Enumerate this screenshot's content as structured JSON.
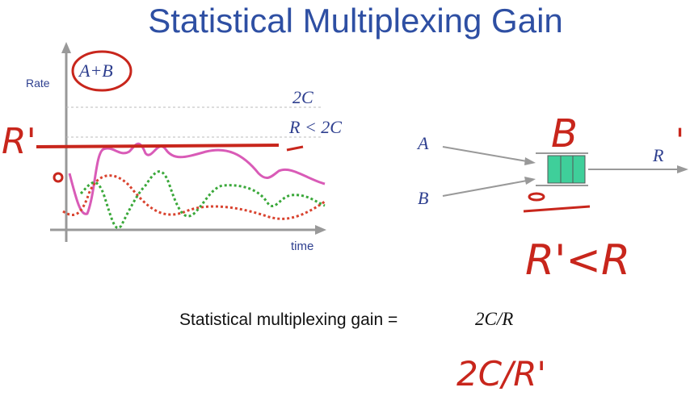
{
  "title": "Statistical Multiplexing Gain",
  "graph": {
    "y_axis_label": "Rate",
    "x_axis_label": "time",
    "circled_label": "A+B",
    "levels": [
      "2C",
      "R < 2C"
    ]
  },
  "queue": {
    "inputs": [
      "A",
      "B"
    ],
    "output": "R"
  },
  "formula": {
    "text": "Statistical multiplexing gain =",
    "expression": "2C/R"
  },
  "annotations": {
    "left_rate": "R'",
    "buffer_label": "B",
    "output_mark": "'",
    "inequality": "R'<R",
    "gain": "2C/R'"
  }
}
